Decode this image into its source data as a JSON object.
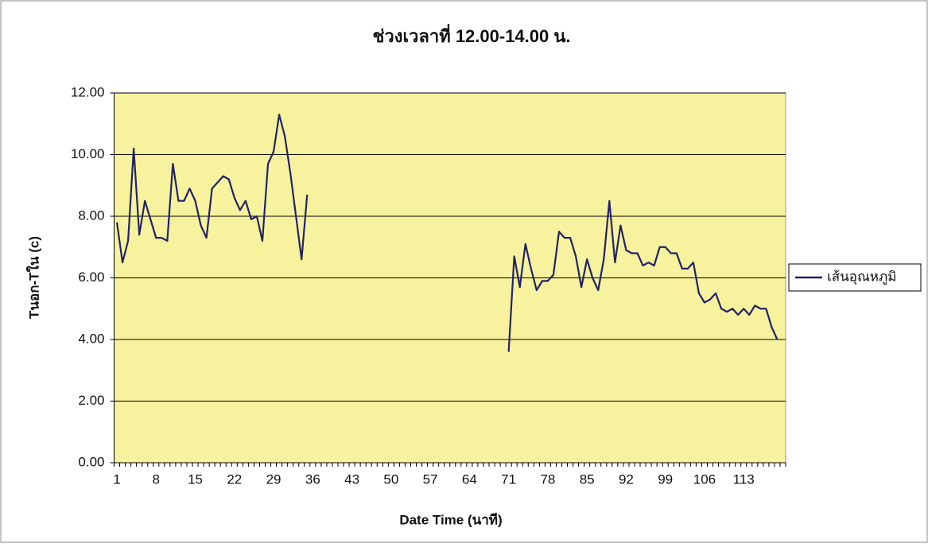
{
  "chart_data": {
    "type": "line",
    "title": "ช่วงเวลาที่ 12.00-14.00 น.",
    "x_label": "Date Time (นาที)",
    "y_label": "Tนอก-Tใน (c)",
    "categories": [
      "1",
      null,
      null,
      null,
      null,
      null,
      null,
      "8",
      null,
      null,
      null,
      null,
      null,
      null,
      "15",
      null,
      null,
      null,
      null,
      null,
      null,
      "22",
      null,
      null,
      null,
      null,
      null,
      null,
      "29",
      null,
      null,
      null,
      null,
      null,
      null,
      "36",
      null,
      null,
      null,
      null,
      null,
      null,
      "43",
      null,
      null,
      null,
      null,
      null,
      null,
      "50",
      null,
      null,
      null,
      null,
      null,
      null,
      "57",
      null,
      null,
      null,
      null,
      null,
      null,
      "64",
      null,
      null,
      null,
      null,
      null,
      null,
      "71",
      null,
      null,
      null,
      null,
      null,
      null,
      "78",
      null,
      null,
      null,
      null,
      null,
      null,
      "85",
      null,
      null,
      null,
      null,
      null,
      null,
      "92",
      null,
      null,
      null,
      null,
      null,
      null,
      "99",
      null,
      null,
      null,
      null,
      null,
      null,
      "106",
      null,
      null,
      null,
      null,
      null,
      null,
      "113",
      null,
      null,
      null,
      null,
      null,
      null,
      null
    ],
    "series": [
      {
        "name": "เส้นอุณหภูมิ",
        "color": "#232366",
        "values": [
          7.8,
          6.5,
          7.2,
          10.2,
          7.4,
          8.5,
          7.9,
          7.3,
          7.3,
          7.2,
          9.7,
          8.5,
          8.5,
          8.9,
          8.5,
          7.7,
          7.3,
          8.9,
          9.1,
          9.3,
          9.2,
          8.6,
          8.2,
          8.5,
          7.9,
          8.0,
          7.2,
          9.7,
          10.1,
          11.3,
          10.6,
          9.4,
          8.0,
          6.6,
          8.7,
          null,
          null,
          null,
          null,
          null,
          null,
          null,
          null,
          null,
          null,
          null,
          null,
          null,
          null,
          null,
          null,
          null,
          null,
          null,
          null,
          null,
          null,
          null,
          null,
          null,
          null,
          null,
          null,
          null,
          null,
          null,
          null,
          null,
          null,
          null,
          3.6,
          6.7,
          5.7,
          7.1,
          6.3,
          5.6,
          5.9,
          5.9,
          6.1,
          7.5,
          7.3,
          7.3,
          6.7,
          5.7,
          6.6,
          6.0,
          5.6,
          6.6,
          8.5,
          6.5,
          7.7,
          6.9,
          6.8,
          6.8,
          6.4,
          6.5,
          6.4,
          7.0,
          7.0,
          6.8,
          6.8,
          6.3,
          6.3,
          6.5,
          5.5,
          5.2,
          5.3,
          5.5,
          5.0,
          4.9,
          5.0,
          4.8,
          5.0,
          4.8,
          5.1,
          5.0,
          5.0,
          4.4,
          4.0,
          null
        ]
      }
    ],
    "ylim": [
      0,
      12
    ],
    "yticks": [
      {
        "value": 0,
        "label": "0.00"
      },
      {
        "value": 2,
        "label": "2.00"
      },
      {
        "value": 4,
        "label": "4.00"
      },
      {
        "value": 6,
        "label": "6.00"
      },
      {
        "value": 8,
        "label": "8.00"
      },
      {
        "value": 10,
        "label": "10.00"
      },
      {
        "value": 12,
        "label": "12.00"
      }
    ],
    "grid": true,
    "legend": "right",
    "plot_background": "#f7f29e"
  }
}
